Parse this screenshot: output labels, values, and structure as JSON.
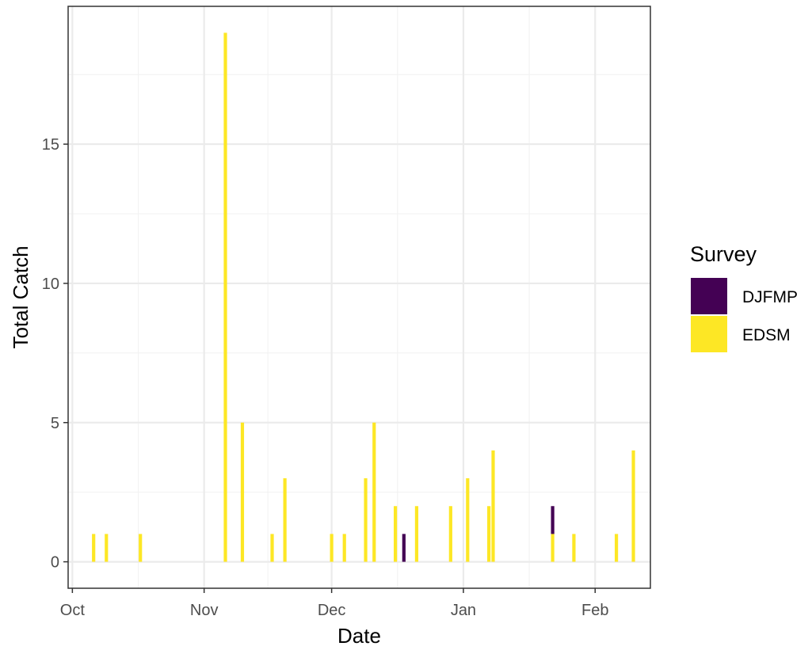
{
  "chart_data": {
    "type": "bar",
    "stacked": true,
    "xlabel": "Date",
    "ylabel": "Total Catch",
    "x_ticks": [
      {
        "label": "Oct",
        "date": "2020-10-01"
      },
      {
        "label": "Nov",
        "date": "2020-11-01"
      },
      {
        "label": "Dec",
        "date": "2020-12-01"
      },
      {
        "label": "Jan",
        "date": "2021-01-01"
      },
      {
        "label": "Feb",
        "date": "2021-02-01"
      }
    ],
    "y_ticks": [
      0,
      5,
      10,
      15
    ],
    "xlim": [
      "2020-09-30",
      "2021-02-14"
    ],
    "ylim": [
      -0.95,
      19.95
    ],
    "grid": true,
    "legend": {
      "title": "Survey",
      "position": "right"
    },
    "series": [
      {
        "name": "DJFMP",
        "color": "#440154",
        "points": [
          {
            "x": "2020-12-18",
            "y": 1
          },
          {
            "x": "2021-01-22",
            "y": 1
          }
        ]
      },
      {
        "name": "EDSM",
        "color": "#FDE725",
        "points": [
          {
            "x": "2020-10-06",
            "y": 1
          },
          {
            "x": "2020-10-09",
            "y": 1
          },
          {
            "x": "2020-10-17",
            "y": 1
          },
          {
            "x": "2020-11-06",
            "y": 19
          },
          {
            "x": "2020-11-10",
            "y": 5
          },
          {
            "x": "2020-11-17",
            "y": 1
          },
          {
            "x": "2020-11-20",
            "y": 3
          },
          {
            "x": "2020-12-01",
            "y": 1
          },
          {
            "x": "2020-12-04",
            "y": 1
          },
          {
            "x": "2020-12-09",
            "y": 3
          },
          {
            "x": "2020-12-11",
            "y": 5
          },
          {
            "x": "2020-12-16",
            "y": 2
          },
          {
            "x": "2020-12-21",
            "y": 2
          },
          {
            "x": "2020-12-29",
            "y": 2
          },
          {
            "x": "2021-01-02",
            "y": 3
          },
          {
            "x": "2021-01-07",
            "y": 2
          },
          {
            "x": "2021-01-08",
            "y": 4
          },
          {
            "x": "2021-01-22",
            "y": 1
          },
          {
            "x": "2021-01-27",
            "y": 1
          },
          {
            "x": "2021-02-06",
            "y": 1
          },
          {
            "x": "2021-02-10",
            "y": 4
          }
        ]
      }
    ]
  }
}
